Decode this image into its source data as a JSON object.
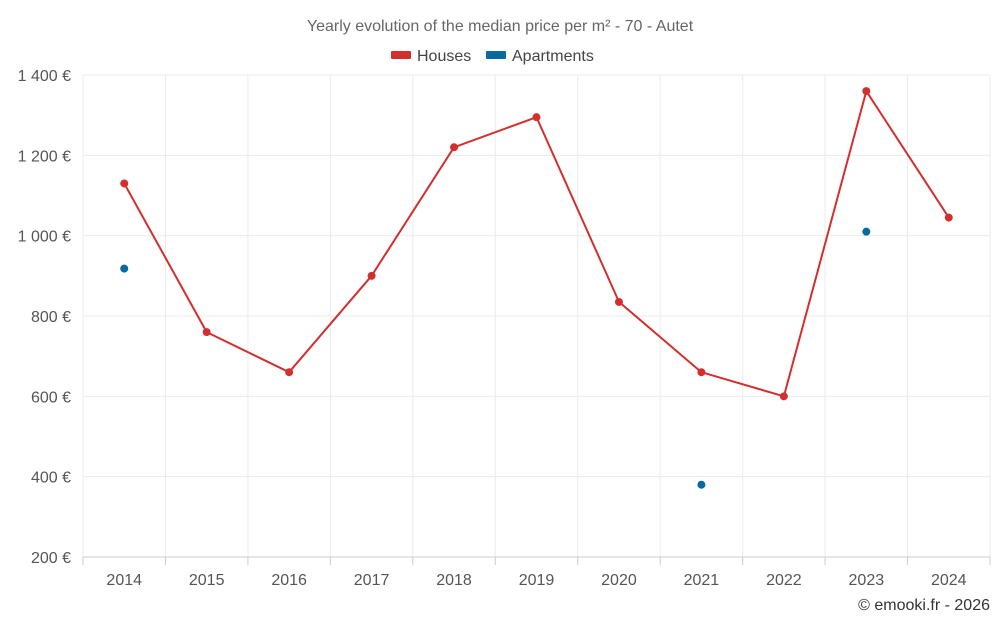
{
  "chart_data": {
    "type": "line",
    "title": "Yearly evolution of the median price per m² - 70 - Autet",
    "categories": [
      "2014",
      "2015",
      "2016",
      "2017",
      "2018",
      "2019",
      "2020",
      "2021",
      "2022",
      "2023",
      "2024"
    ],
    "y_ticks": [
      "200 €",
      "400 €",
      "600 €",
      "800 €",
      "1 000 €",
      "1 200 €",
      "1 400 €"
    ],
    "ylim": [
      200,
      1400
    ],
    "grid": true,
    "legend_position": "top-center",
    "series": [
      {
        "name": "Houses",
        "color": "#d32f2f",
        "line": true,
        "values": [
          1130,
          760,
          660,
          900,
          1220,
          1295,
          835,
          660,
          600,
          1360,
          1045
        ]
      },
      {
        "name": "Apartments",
        "color": "#0868a0",
        "line": false,
        "values": [
          918,
          null,
          null,
          null,
          null,
          null,
          null,
          380,
          null,
          1010,
          null
        ]
      }
    ]
  },
  "credit": "© emooki.fr - 2026"
}
